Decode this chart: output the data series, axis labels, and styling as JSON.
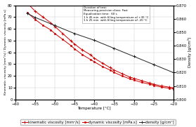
{
  "temp_kin": [
    -57,
    -55,
    -53,
    -51,
    -50,
    -48,
    -46,
    -45,
    -43,
    -41,
    -40,
    -38,
    -36,
    -35,
    -33,
    -31,
    -30,
    -28,
    -26,
    -25,
    -23,
    -21,
    -20
  ],
  "kin": [
    82,
    75,
    70,
    65,
    62,
    56,
    50,
    47,
    42,
    38,
    35,
    31,
    27,
    25,
    22,
    19,
    18,
    16,
    14,
    13,
    11.5,
    10.5,
    10
  ],
  "temp_dyn": [
    -57,
    -55,
    -53,
    -51,
    -50,
    -48,
    -46,
    -45,
    -43,
    -41,
    -40,
    -38,
    -36,
    -35,
    -33,
    -31,
    -30,
    -28,
    -26,
    -25,
    -23,
    -21,
    -20
  ],
  "dyn": [
    74,
    68,
    63,
    59,
    56,
    51,
    46,
    43,
    38,
    34,
    32,
    28,
    25,
    23,
    20,
    17.5,
    16.5,
    14.5,
    13,
    12,
    10.5,
    9.5,
    9
  ],
  "temp_dens": [
    -57,
    -55,
    -50,
    -45,
    -40,
    -35,
    -30,
    -25,
    -20
  ],
  "dens": [
    0.864,
    0.861,
    0.855,
    0.849,
    0.844,
    0.838,
    0.832,
    0.826,
    0.82
  ],
  "xlabel": "Temperature [°C]",
  "ylabel_left": "Kinematic viscosity [mm²/s] / Dynamic viscosity [mPa.s]",
  "ylabel_right": "Density [g/cm³]",
  "xlim": [
    -60,
    -20
  ],
  "ylim_left": [
    0,
    80
  ],
  "ylim_right": [
    0.8,
    0.87
  ],
  "xticks": [
    -60,
    -55,
    -50,
    -45,
    -40,
    -35,
    -30,
    -25,
    -20
  ],
  "yticks_left": [
    0,
    10,
    20,
    30,
    40,
    50,
    60,
    70,
    80
  ],
  "yticks_right": [
    0.8,
    0.81,
    0.82,
    0.83,
    0.84,
    0.85,
    0.86,
    0.87
  ],
  "color_red": "#cc0000",
  "color_dark": "#222222",
  "annotation_text": "Duration of test:\nMeasuring precision class: Fast\nEqualization time:  60 s\n1 h 45 min  with filling temperature of +30 °C\n1 h 25 min  with filling temperature of -20 °C",
  "legend_labels": [
    "kinematic viscosity [mm²/s]",
    "dynamic viscosity [mPa.s]",
    "density [g/cm³]"
  ],
  "axis_fontsize": 4,
  "tick_fontsize": 3.8,
  "legend_fontsize": 3.8
}
